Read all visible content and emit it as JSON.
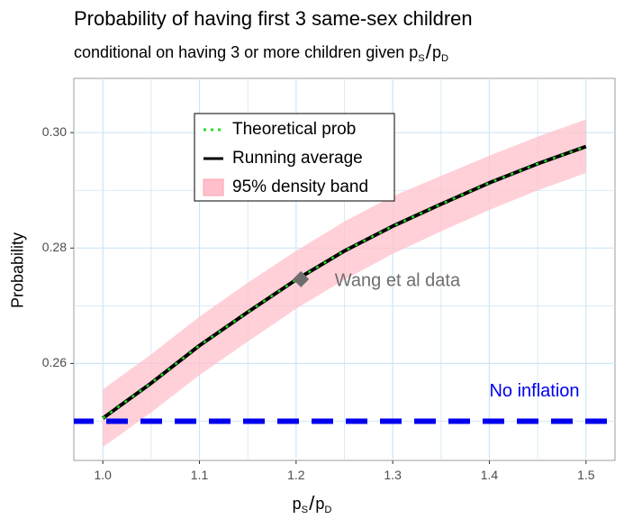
{
  "chart_data": {
    "type": "line",
    "title": "Probability of having first 3 same-sex children",
    "subtitle": {
      "text": "conditional on having 3 or more children given ",
      "ratio": {
        "num": "p",
        "num_sub": "S",
        "den": "p",
        "den_sub": "D"
      }
    },
    "xlabel": {
      "num": "p",
      "num_sub": "S",
      "den": "p",
      "den_sub": "D"
    },
    "ylabel": "Probability",
    "xlim": [
      0.97,
      1.53
    ],
    "ylim": [
      0.2432,
      0.3094
    ],
    "x_ticks": [
      1.0,
      1.1,
      1.2,
      1.3,
      1.4,
      1.5
    ],
    "x_tick_labels": [
      "1.0",
      "1.1",
      "1.2",
      "1.3",
      "1.4",
      "1.5"
    ],
    "y_ticks": [
      0.26,
      0.28,
      0.3
    ],
    "y_tick_labels": [
      "0.26",
      "0.28",
      "0.30"
    ],
    "grid": true,
    "series": [
      {
        "name": "Theoretical prob",
        "style": "dotted",
        "color": "#22dd22",
        "x": [
          1.0,
          1.05,
          1.1,
          1.15,
          1.2,
          1.25,
          1.3,
          1.35,
          1.4,
          1.45,
          1.5
        ],
        "y": [
          0.2505,
          0.2566,
          0.2631,
          0.2689,
          0.2745,
          0.2795,
          0.2838,
          0.2876,
          0.2913,
          0.2946,
          0.2976
        ]
      },
      {
        "name": "Running average",
        "style": "solid",
        "color": "#000000",
        "x": [
          1.0,
          1.05,
          1.1,
          1.15,
          1.2,
          1.25,
          1.3,
          1.35,
          1.4,
          1.45,
          1.5
        ],
        "y": [
          0.2505,
          0.2566,
          0.2631,
          0.2689,
          0.2745,
          0.2795,
          0.2838,
          0.2876,
          0.2913,
          0.2946,
          0.2976
        ]
      },
      {
        "name": "95% density band",
        "style": "band",
        "color": "#ffc0cb",
        "x": [
          1.0,
          1.05,
          1.1,
          1.15,
          1.2,
          1.25,
          1.3,
          1.35,
          1.4,
          1.45,
          1.5
        ],
        "lower": [
          0.2455,
          0.2515,
          0.258,
          0.2638,
          0.2695,
          0.2745,
          0.279,
          0.2829,
          0.2866,
          0.29,
          0.293
        ],
        "upper": [
          0.2555,
          0.2616,
          0.2681,
          0.274,
          0.2795,
          0.2846,
          0.289,
          0.2925,
          0.296,
          0.2993,
          0.3023
        ]
      },
      {
        "name": "No inflation",
        "style": "dashed",
        "color": "#0000ee",
        "y_constant": 0.25
      }
    ],
    "points": [
      {
        "label": "Wang et al data",
        "x": 1.205,
        "y": 0.2746,
        "marker": "diamond",
        "color": "#6e6e6e"
      }
    ],
    "annotations": [
      {
        "text": "No inflation",
        "x": 1.4,
        "y": 0.2551,
        "color": "#0000ee"
      },
      {
        "text": "Wang et al data",
        "x": 1.24,
        "y": 0.2742,
        "color": "#6e6e6e"
      }
    ],
    "legend": {
      "position": "top-left",
      "entries": [
        "Theoretical prob",
        "Running average",
        "95% density band"
      ]
    }
  }
}
